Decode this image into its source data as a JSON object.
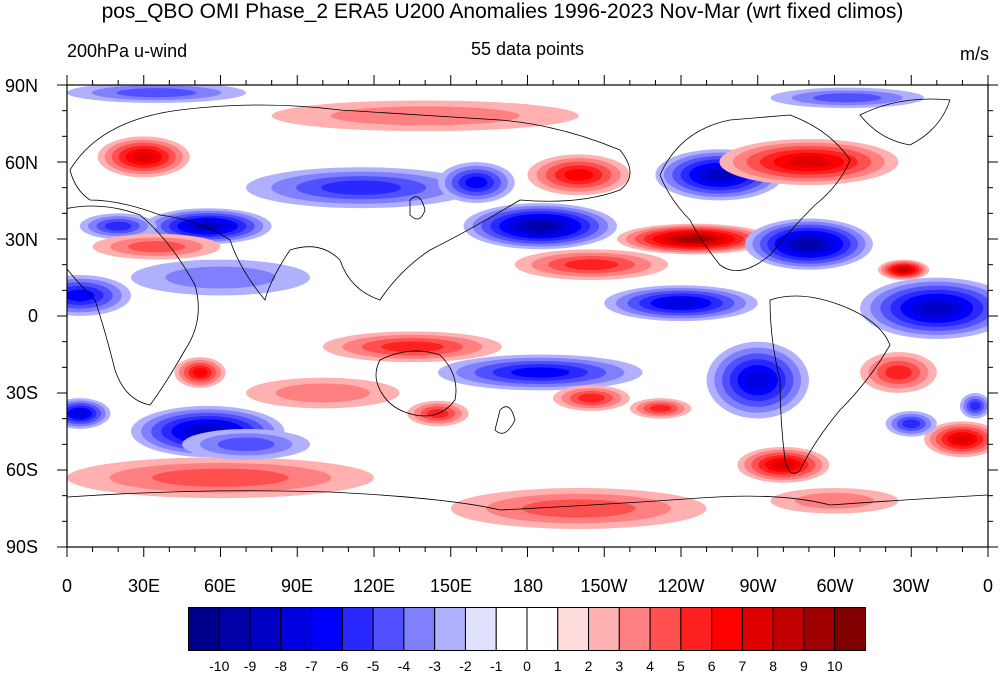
{
  "title": "pos_QBO OMI Phase_2 ERA5 U200 Anomalies 1996-2023 Nov-Mar (wrt fixed climos)",
  "subtitle_left": "200hPa u-wind",
  "subtitle_center": "55 data points",
  "subtitle_right": "m/s",
  "lat_labels": [
    "90N",
    "60N",
    "30N",
    "0",
    "30S",
    "60S",
    "90S"
  ],
  "lon_labels": [
    "0",
    "30E",
    "60E",
    "90E",
    "120E",
    "150E",
    "180",
    "150W",
    "120W",
    "90W",
    "60W",
    "30W",
    "0"
  ],
  "colorbar": {
    "labels": [
      "-10",
      "-9",
      "-8",
      "-7",
      "-6",
      "-5",
      "-4",
      "-3",
      "-2",
      "-1",
      "0",
      "1",
      "2",
      "3",
      "4",
      "5",
      "6",
      "7",
      "8",
      "9",
      "10"
    ],
    "colors": [
      "#00008b",
      "#0000a8",
      "#0000c4",
      "#0000e0",
      "#0000ff",
      "#2828ff",
      "#5050ff",
      "#8080ff",
      "#b0b0ff",
      "#e0e0ff",
      "#ffffff",
      "#ffffff",
      "#ffdcdc",
      "#ffb0b0",
      "#ff8080",
      "#ff5050",
      "#ff2020",
      "#ff0000",
      "#e00000",
      "#c00000",
      "#a00000",
      "#800000"
    ]
  },
  "map_data": {
    "projection": "cylindrical-equidistant",
    "lon_range": [
      0,
      360
    ],
    "lat_range": [
      -90,
      90
    ],
    "anomaly_features": [
      {
        "lon": 30,
        "lat": 62,
        "rx": 18,
        "ry": 8,
        "level": 6
      },
      {
        "lon": 55,
        "lat": 35,
        "rx": 25,
        "ry": 7,
        "level": -7
      },
      {
        "lon": 20,
        "lat": 35,
        "rx": 15,
        "ry": 5,
        "level": -4
      },
      {
        "lon": 35,
        "lat": 27,
        "rx": 25,
        "ry": 5,
        "level": 3
      },
      {
        "lon": 5,
        "lat": 8,
        "rx": 20,
        "ry": 8,
        "level": -5
      },
      {
        "lon": 60,
        "lat": 15,
        "rx": 35,
        "ry": 7,
        "level": -2
      },
      {
        "lon": 5,
        "lat": -38,
        "rx": 12,
        "ry": 6,
        "level": -6
      },
      {
        "lon": 55,
        "lat": -45,
        "rx": 30,
        "ry": 10,
        "level": -7
      },
      {
        "lon": 52,
        "lat": -22,
        "rx": 10,
        "ry": 6,
        "level": 5
      },
      {
        "lon": 60,
        "lat": -63,
        "rx": 60,
        "ry": 8,
        "level": 3
      },
      {
        "lon": 70,
        "lat": -50,
        "rx": 25,
        "ry": 6,
        "level": -3
      },
      {
        "lon": 140,
        "lat": 78,
        "rx": 60,
        "ry": 6,
        "level": 2
      },
      {
        "lon": 115,
        "lat": 50,
        "rx": 45,
        "ry": 8,
        "level": -4
      },
      {
        "lon": 160,
        "lat": 52,
        "rx": 15,
        "ry": 8,
        "level": -5
      },
      {
        "lon": 200,
        "lat": 55,
        "rx": 20,
        "ry": 8,
        "level": 5
      },
      {
        "lon": 185,
        "lat": 35,
        "rx": 30,
        "ry": 9,
        "level": -8
      },
      {
        "lon": 255,
        "lat": 55,
        "rx": 25,
        "ry": 10,
        "level": -7
      },
      {
        "lon": 290,
        "lat": 60,
        "rx": 35,
        "ry": 9,
        "level": 6
      },
      {
        "lon": 245,
        "lat": 30,
        "rx": 30,
        "ry": 6,
        "level": 8
      },
      {
        "lon": 205,
        "lat": 20,
        "rx": 30,
        "ry": 6,
        "level": 4
      },
      {
        "lon": 290,
        "lat": 28,
        "rx": 25,
        "ry": 10,
        "level": -8
      },
      {
        "lon": 327,
        "lat": 18,
        "rx": 10,
        "ry": 4,
        "level": 7
      },
      {
        "lon": 240,
        "lat": 5,
        "rx": 30,
        "ry": 7,
        "level": -6
      },
      {
        "lon": 340,
        "lat": 3,
        "rx": 30,
        "ry": 12,
        "level": -7
      },
      {
        "lon": 135,
        "lat": -12,
        "rx": 35,
        "ry": 6,
        "level": 4
      },
      {
        "lon": 185,
        "lat": -22,
        "rx": 40,
        "ry": 7,
        "level": -5
      },
      {
        "lon": 270,
        "lat": -25,
        "rx": 20,
        "ry": 15,
        "level": -6
      },
      {
        "lon": 325,
        "lat": -22,
        "rx": 15,
        "ry": 8,
        "level": 4
      },
      {
        "lon": 145,
        "lat": -38,
        "rx": 12,
        "ry": 5,
        "level": 4
      },
      {
        "lon": 205,
        "lat": -32,
        "rx": 15,
        "ry": 5,
        "level": 4
      },
      {
        "lon": 232,
        "lat": -36,
        "rx": 12,
        "ry": 4,
        "level": 4
      },
      {
        "lon": 280,
        "lat": -58,
        "rx": 18,
        "ry": 7,
        "level": 6
      },
      {
        "lon": 350,
        "lat": -48,
        "rx": 15,
        "ry": 7,
        "level": 6
      },
      {
        "lon": 200,
        "lat": -75,
        "rx": 50,
        "ry": 8,
        "level": 3
      },
      {
        "lon": 35,
        "lat": 87,
        "rx": 35,
        "ry": 4,
        "level": -3
      },
      {
        "lon": 305,
        "lat": 85,
        "rx": 30,
        "ry": 4,
        "level": -3
      },
      {
        "lon": 330,
        "lat": -42,
        "rx": 10,
        "ry": 5,
        "level": -4
      },
      {
        "lon": 355,
        "lat": -35,
        "rx": 6,
        "ry": 5,
        "level": -4
      },
      {
        "lon": 300,
        "lat": -72,
        "rx": 25,
        "ry": 5,
        "level": 2
      },
      {
        "lon": 100,
        "lat": -30,
        "rx": 30,
        "ry": 6,
        "level": 2
      }
    ]
  }
}
